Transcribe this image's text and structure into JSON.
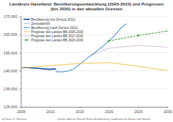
{
  "chart_data": {
    "type": "line",
    "title": "Landkreis Havelland: Bevölkerungsentwicklung (2005-2023) und Prognosen (bis 2030) in den aktuellen Grenzen",
    "annotations": [
      "by Hans G. Oberlack",
      "Quellen: Amt für Statistik Berlin-Brandenburg, Landesamt für Bauen und Verkehr"
    ],
    "series": [
      {
        "name": "Bevölkerung (vor Zensus 2011)",
        "color": "#1f5fa8",
        "line_style": "solid",
        "x": [
          2005,
          2006,
          2007,
          2008,
          2009,
          2010,
          2011
        ],
        "values": [
          146500,
          146800,
          146500,
          146300,
          146000,
          145800,
          146000
        ]
      },
      {
        "name": "Zensusdefizit",
        "color": "#b8cce4",
        "line_style": "solid",
        "x": [
          2011,
          2011
        ],
        "values": [
          146000,
          144500
        ]
      },
      {
        "name": "Bevölkerung (nach Zensus 2011)",
        "color": "#5b9bd5",
        "line_style": "solid",
        "x": [
          2011,
          2012,
          2013,
          2014,
          2015,
          2016,
          2017,
          2018,
          2019,
          2020,
          2021,
          2022,
          2023
        ],
        "values": [
          144500,
          144300,
          144800,
          146000,
          148500,
          151000,
          153500,
          156000,
          158500,
          161500,
          164500,
          168500,
          171000
        ]
      },
      {
        "name": "Prognose des Landes BB 2005-2030",
        "color": "#f2c14e",
        "line_style": "solid",
        "x": [
          2005,
          2010,
          2015,
          2020,
          2025,
          2030
        ],
        "values": [
          146500,
          147800,
          149000,
          149500,
          147500,
          145000
        ]
      },
      {
        "name": "Prognose des Landes BB 2017-2030",
        "color": "#9b59b6",
        "line_style": "dotted",
        "x": [
          2017,
          2020,
          2025,
          2030
        ],
        "values": [
          153500,
          157500,
          159000,
          158000
        ]
      },
      {
        "name": "Prognose des Landes BB 2020-2030",
        "color": "#3aa335",
        "line_style": "dashed",
        "marker": "circle",
        "x": [
          2020,
          2025,
          2030
        ],
        "values": [
          161500,
          164500,
          167000
        ]
      }
    ],
    "xlim": [
      2005,
      2030
    ],
    "xticks": [
      2005,
      2010,
      2015,
      2020,
      2025,
      2030
    ],
    "ylim": [
      125000,
      175000
    ],
    "yticks": [
      {
        "value": 125000,
        "label": "125.000"
      },
      {
        "value": 135000,
        "label": "135.000"
      },
      {
        "value": 145000,
        "label": "145.000"
      },
      {
        "value": 155000,
        "label": "155.000"
      },
      {
        "value": 165000,
        "label": "165.000"
      },
      {
        "value": 175000,
        "label": "175.000"
      }
    ],
    "grid": true,
    "legend": "upper left"
  }
}
